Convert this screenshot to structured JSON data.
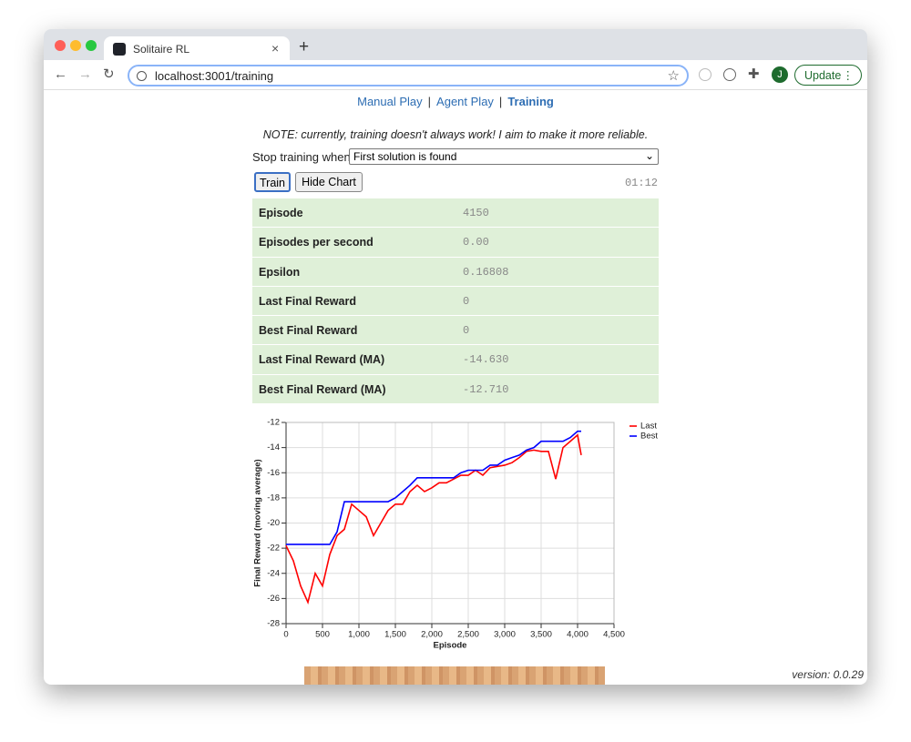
{
  "browser": {
    "tab_title": "Solitaire RL",
    "url": "localhost:3001/training",
    "update_button": "Update",
    "profile_initial": "J"
  },
  "nav": {
    "links": [
      "Manual Play",
      "Agent Play",
      "Training"
    ],
    "separator": "|"
  },
  "note": "NOTE: currently, training doesn't always work! I aim to make it more reliable.",
  "stop_label": "Stop training when:",
  "stop_select": "First solution is found",
  "buttons": [
    "Train",
    "Hide Chart"
  ],
  "timer": "01:12",
  "stats": {
    "rows": [
      [
        "Episode",
        "4150"
      ],
      [
        "Episodes per second",
        "0.00"
      ],
      [
        "Epsilon",
        "0.16808"
      ],
      [
        "Last Final Reward",
        "0"
      ],
      [
        "Best Final Reward",
        "0"
      ],
      [
        "Last Final Reward (MA)",
        "-14.630"
      ],
      [
        "Best Final Reward (MA)",
        "-12.710"
      ]
    ]
  },
  "chart_data": {
    "type": "line",
    "x_label": "Episode",
    "y_label": "Final Reward (moving average)",
    "x": [
      0,
      100,
      200,
      300,
      400,
      500,
      600,
      700,
      800,
      900,
      1000,
      1100,
      1200,
      1300,
      1400,
      1500,
      1600,
      1700,
      1800,
      1900,
      2000,
      2100,
      2200,
      2300,
      2400,
      2500,
      2600,
      2700,
      2800,
      2900,
      3000,
      3100,
      3200,
      3300,
      3400,
      3500,
      3600,
      3700,
      3800,
      3900,
      4000,
      4050
    ],
    "series": [
      {
        "name": "Last",
        "color": "#ff0000",
        "values": [
          -21.8,
          -23,
          -25,
          -26.3,
          -24,
          -25,
          -22.5,
          -21,
          -20.5,
          -18.5,
          -19,
          -19.5,
          -21,
          -20,
          -19,
          -18.5,
          -18.5,
          -17.5,
          -17,
          -17.5,
          -17.2,
          -16.8,
          -16.8,
          -16.5,
          -16.2,
          -16.2,
          -15.8,
          -16.2,
          -15.6,
          -15.5,
          -15.4,
          -15.2,
          -14.8,
          -14.3,
          -14.2,
          -14.3,
          -14.3,
          -16.5,
          -14,
          -13.5,
          -13,
          -14.6
        ]
      },
      {
        "name": "Best",
        "color": "#0000ff",
        "values": [
          -21.7,
          -21.7,
          -21.7,
          -21.7,
          -21.7,
          -21.7,
          -21.7,
          -20.7,
          -18.3,
          -18.3,
          -18.3,
          -18.3,
          -18.3,
          -18.3,
          -18.3,
          -18,
          -17.5,
          -17,
          -16.4,
          -16.4,
          -16.4,
          -16.4,
          -16.4,
          -16.4,
          -16,
          -15.8,
          -15.8,
          -15.8,
          -15.4,
          -15.4,
          -15,
          -14.8,
          -14.6,
          -14.2,
          -14,
          -13.5,
          -13.5,
          -13.5,
          -13.5,
          -13.2,
          -12.7,
          -12.7
        ]
      }
    ],
    "xlim": [
      0,
      4500
    ],
    "xticks": [
      0,
      500,
      {
        "value": 1000,
        "label": "1,000"
      },
      {
        "value": 1500,
        "label": "1,500"
      },
      {
        "value": 2000,
        "label": "2,000"
      },
      {
        "value": 2500,
        "label": "2,500"
      },
      {
        "value": 3000,
        "label": "3,000"
      },
      {
        "value": 3500,
        "label": "3,500"
      },
      {
        "value": 4000,
        "label": "4,000"
      },
      {
        "value": 4500,
        "label": "4,500"
      }
    ],
    "ylim": [
      -28,
      -12
    ],
    "yticks": [
      -28,
      -26,
      -24,
      -22,
      -20,
      -18,
      -16,
      -14,
      -12
    ],
    "grid": true,
    "legend": "right"
  },
  "version": "version: 0.0.29"
}
